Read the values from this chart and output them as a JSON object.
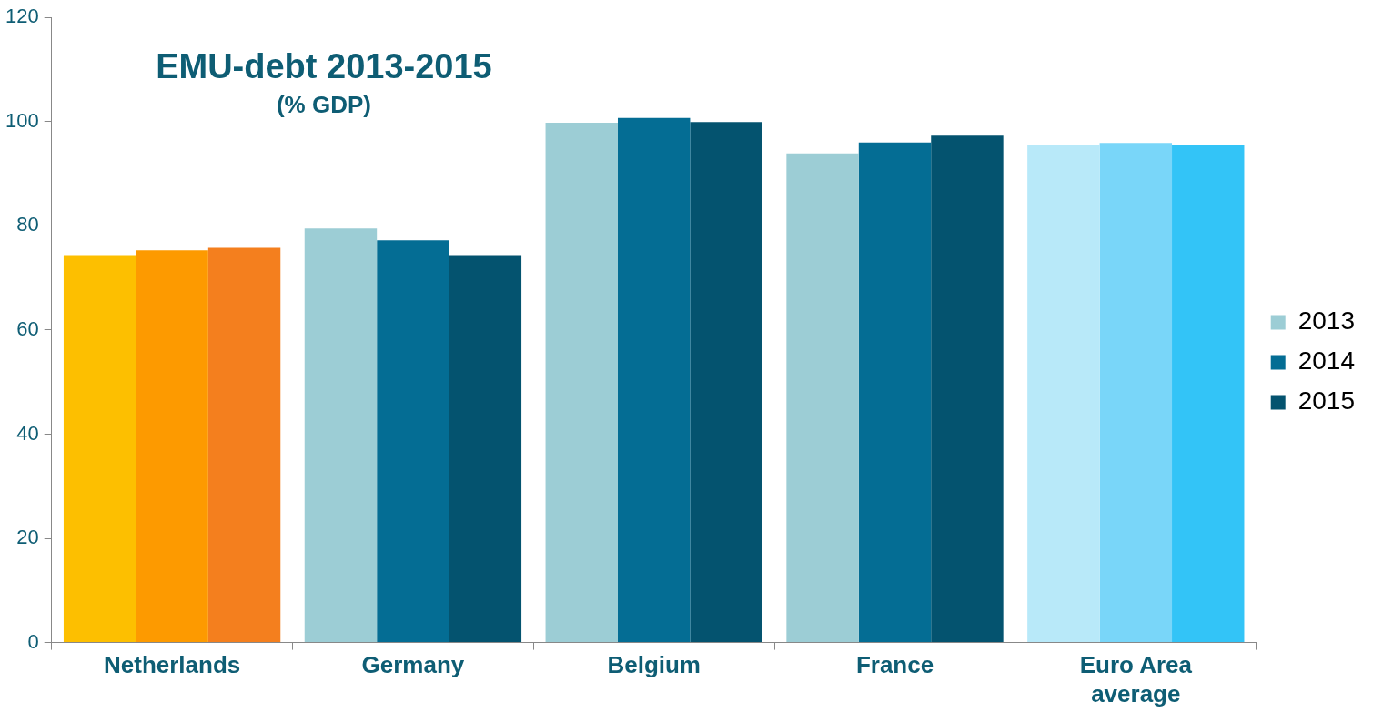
{
  "chart_data": {
    "type": "bar",
    "title": "EMU-debt 2013-2015",
    "subtitle": "(% GDP)",
    "categories": [
      "Netherlands",
      "Germany",
      "Belgium",
      "France",
      "Euro Area average"
    ],
    "series": [
      {
        "name": "2013",
        "color": "#9ccdd5",
        "colors": [
          "#fdbf00",
          "#9ccdd5",
          "#9ccdd5",
          "#9ccdd5",
          "#b8e9f9"
        ],
        "values": [
          74.4,
          79.5,
          99.8,
          93.9,
          95.5
        ]
      },
      {
        "name": "2014",
        "color": "#046d94",
        "colors": [
          "#fd9a00",
          "#046d94",
          "#046d94",
          "#046d94",
          "#79d6f9"
        ],
        "values": [
          75.3,
          77.2,
          100.7,
          96.0,
          95.9
        ]
      },
      {
        "name": "2015",
        "color": "#04536f",
        "colors": [
          "#f47f1e",
          "#04536f",
          "#04536f",
          "#04536f",
          "#33c4f7"
        ],
        "values": [
          75.8,
          74.4,
          99.9,
          97.3,
          95.5
        ]
      }
    ],
    "ylim": [
      0,
      120
    ],
    "yticks": [
      0,
      20,
      40,
      60,
      80,
      100,
      120
    ],
    "grid": false,
    "legend": "right"
  }
}
